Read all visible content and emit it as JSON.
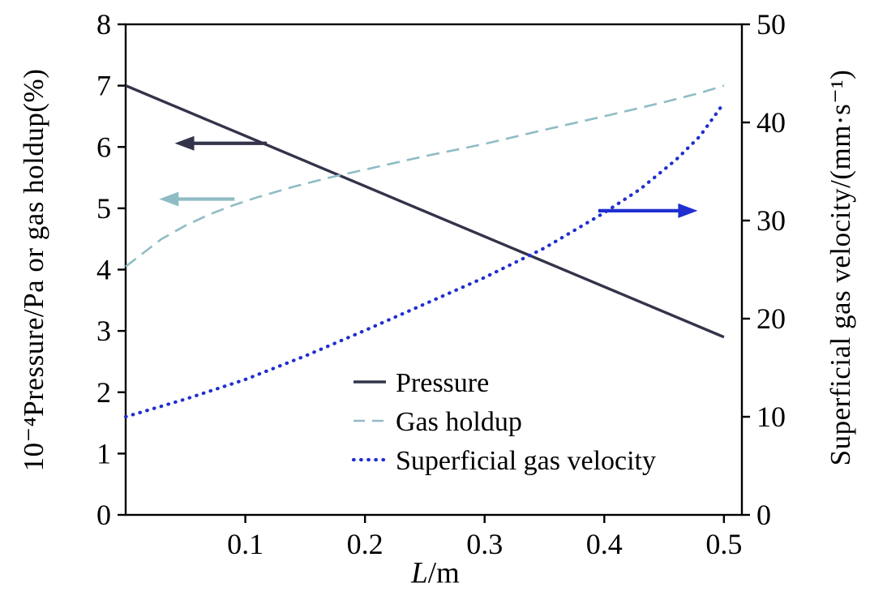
{
  "chart_data": {
    "type": "line",
    "title": "",
    "xlabel_italic": "L",
    "xlabel_rest": "/m",
    "ylabel_left": "10⁻⁴Pressure/Pa or gas holdup(%)",
    "ylabel_right": "Superficial gas velocity/(mm·s⁻¹)",
    "x_range": [
      0,
      0.515
    ],
    "x_ticks": [
      0.1,
      0.2,
      0.3,
      0.4,
      0.5
    ],
    "y_left_range": [
      0,
      8
    ],
    "y_left_ticks": [
      0,
      1,
      2,
      3,
      4,
      5,
      6,
      7,
      8
    ],
    "y_right_range": [
      0,
      50
    ],
    "y_right_ticks": [
      0,
      10,
      20,
      30,
      40,
      50
    ],
    "grid": false,
    "legend_position": "inside-bottom-center",
    "colors": {
      "pressure": "#33334a",
      "gas_holdup": "#8fbcc4",
      "superficial_gas_velocity": "#1f2fd0",
      "axis": "#000000"
    },
    "series": [
      {
        "name": "Pressure",
        "axis": "left",
        "style": "solid",
        "color": "#33334a",
        "x": [
          0,
          0.05,
          0.1,
          0.15,
          0.2,
          0.25,
          0.3,
          0.35,
          0.4,
          0.45,
          0.5
        ],
        "y": [
          7.0,
          6.59,
          6.18,
          5.77,
          5.36,
          4.95,
          4.54,
          4.13,
          3.72,
          3.31,
          2.9
        ]
      },
      {
        "name": "Gas holdup",
        "axis": "left",
        "style": "dashed",
        "color": "#8fbcc4",
        "x": [
          0,
          0.01,
          0.02,
          0.03,
          0.05,
          0.07,
          0.09,
          0.11,
          0.14,
          0.17,
          0.2,
          0.25,
          0.3,
          0.35,
          0.4,
          0.45,
          0.48,
          0.5
        ],
        "y": [
          4.05,
          4.2,
          4.35,
          4.5,
          4.72,
          4.9,
          5.05,
          5.18,
          5.35,
          5.5,
          5.63,
          5.85,
          6.05,
          6.28,
          6.5,
          6.73,
          6.88,
          7.0
        ]
      },
      {
        "name": "Superficial gas velocity",
        "axis": "right",
        "style": "dotted",
        "color": "#1f2fd0",
        "x": [
          0,
          0.05,
          0.1,
          0.15,
          0.2,
          0.25,
          0.3,
          0.35,
          0.4,
          0.43,
          0.46,
          0.48,
          0.5
        ],
        "y": [
          10,
          11.8,
          13.8,
          16.2,
          18.8,
          21.5,
          24.2,
          27.2,
          30.8,
          33.2,
          36.2,
          38.6,
          42
        ]
      }
    ],
    "legend": [
      "Pressure",
      "Gas holdup",
      "Superficial gas velocity"
    ],
    "arrows": [
      {
        "name": "pressure-axis-arrow",
        "color": "#33334a",
        "axis": "left",
        "y": 6.06,
        "x_from": 0.118,
        "x_to": 0.041,
        "direction": "left"
      },
      {
        "name": "gas-holdup-axis-arrow",
        "color": "#8fbcc4",
        "axis": "left",
        "y": 5.15,
        "x_from": 0.091,
        "x_to": 0.028,
        "direction": "left"
      },
      {
        "name": "velocity-axis-arrow",
        "color": "#1f2fd0",
        "axis": "right",
        "y": 31.0,
        "x_from": 0.395,
        "x_to": 0.478,
        "direction": "right"
      }
    ]
  }
}
